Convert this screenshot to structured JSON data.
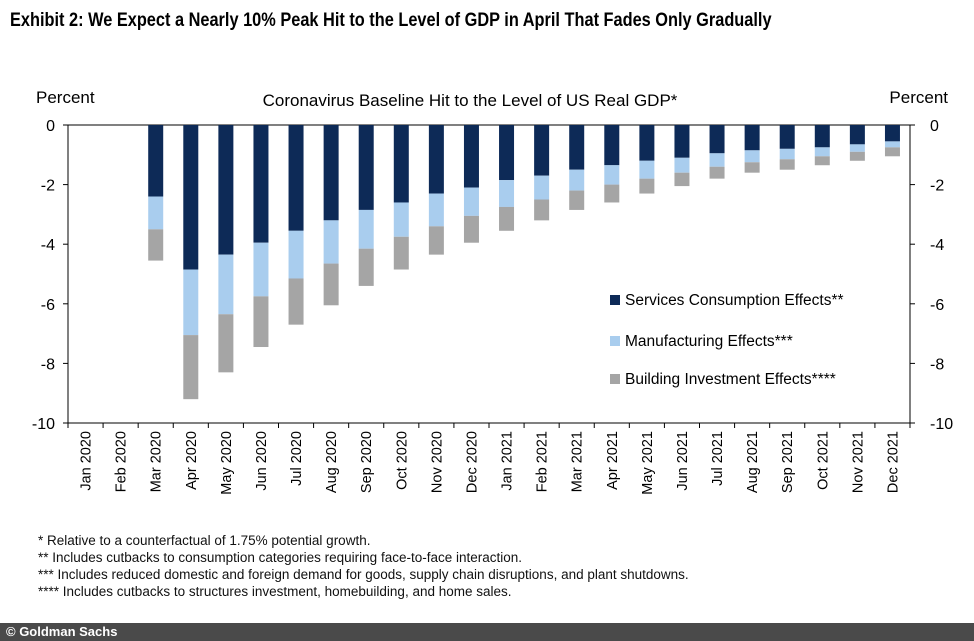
{
  "exhibit_title": "Exhibit 2: We Expect a Nearly 10% Peak Hit to the Level of GDP in April That Fades Only Gradually",
  "chart_data": {
    "type": "bar",
    "stacked": true,
    "title": "Coronavirus Baseline Hit to the Level of US Real GDP*",
    "ylabel_left": "Percent",
    "ylabel_right": "Percent",
    "ylim": [
      -10,
      0
    ],
    "yticks": [
      0,
      -2,
      -4,
      -6,
      -8,
      -10
    ],
    "grid": false,
    "legend_position": "right",
    "categories": [
      "Jan 2020",
      "Feb 2020",
      "Mar 2020",
      "Apr 2020",
      "May 2020",
      "Jun 2020",
      "Jul 2020",
      "Aug 2020",
      "Sep 2020",
      "Oct 2020",
      "Nov 2020",
      "Dec 2020",
      "Jan 2021",
      "Feb 2021",
      "Mar 2021",
      "Apr 2021",
      "May 2021",
      "Jun 2021",
      "Jul 2021",
      "Aug 2021",
      "Sep 2021",
      "Oct 2021",
      "Nov 2021",
      "Dec 2021"
    ],
    "series": [
      {
        "name": "Services Consumption Effects**",
        "color": "#0d2a57",
        "values": [
          0,
          0,
          -2.4,
          -4.85,
          -4.35,
          -3.95,
          -3.55,
          -3.2,
          -2.85,
          -2.6,
          -2.3,
          -2.1,
          -1.85,
          -1.7,
          -1.5,
          -1.35,
          -1.2,
          -1.1,
          -0.95,
          -0.85,
          -0.8,
          -0.75,
          -0.65,
          -0.55
        ]
      },
      {
        "name": "Manufacturing Effects***",
        "color": "#a9cdee",
        "values": [
          0,
          0,
          -1.1,
          -2.2,
          -2.0,
          -1.8,
          -1.6,
          -1.45,
          -1.3,
          -1.15,
          -1.1,
          -0.95,
          -0.9,
          -0.8,
          -0.7,
          -0.65,
          -0.6,
          -0.5,
          -0.45,
          -0.4,
          -0.35,
          -0.3,
          -0.25,
          -0.2
        ]
      },
      {
        "name": "Building Investment Effects****",
        "color": "#a5a5a5",
        "values": [
          0,
          0,
          -1.05,
          -2.15,
          -1.95,
          -1.7,
          -1.55,
          -1.4,
          -1.25,
          -1.1,
          -0.95,
          -0.9,
          -0.8,
          -0.7,
          -0.65,
          -0.6,
          -0.5,
          -0.45,
          -0.4,
          -0.35,
          -0.35,
          -0.3,
          -0.3,
          -0.3
        ]
      }
    ]
  },
  "notes": [
    "* Relative to a counterfactual of 1.75% potential growth.",
    "** Includes cutbacks to consumption categories requiring face-to-face interaction.",
    "*** Includes reduced domestic and foreign demand for goods, supply chain disruptions, and plant shutdowns.",
    "**** Includes cutbacks to structures investment, homebuilding, and home sales."
  ],
  "source": "© Goldman Sachs"
}
